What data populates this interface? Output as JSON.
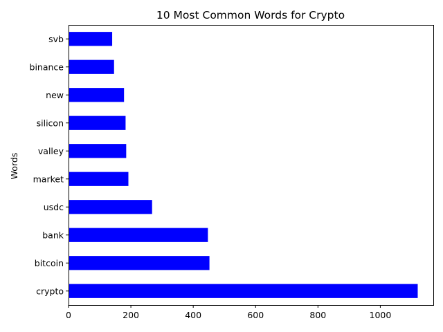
{
  "chart_data": {
    "type": "bar",
    "orientation": "horizontal",
    "title": "10 Most Common Words for Crypto",
    "xlabel": "",
    "ylabel": "Words",
    "categories": [
      "crypto",
      "bitcoin",
      "bank",
      "usdc",
      "market",
      "valley",
      "silicon",
      "new",
      "binance",
      "svb"
    ],
    "values": [
      1120,
      452,
      447,
      268,
      192,
      185,
      183,
      178,
      146,
      140
    ],
    "xlim": [
      0,
      1170
    ],
    "xticks": [
      0,
      200,
      400,
      600,
      800,
      1000
    ],
    "grid": false,
    "bar_color": "#0000ff"
  }
}
